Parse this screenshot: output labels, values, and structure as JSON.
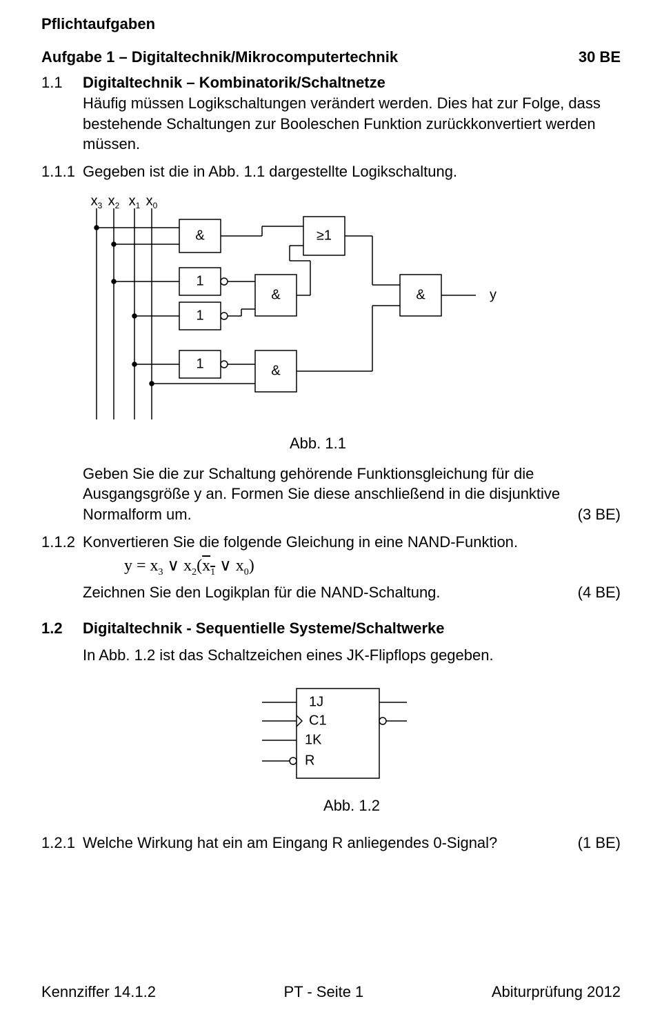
{
  "header": {
    "mandatory": "Pflichtaufgaben",
    "task_title": "Aufgabe 1 – Digitaltechnik/Mikrocomputertechnik",
    "total_points": "30 BE"
  },
  "s11": {
    "num": "1.1",
    "title": "Digitaltechnik – Kombinatorik/Schaltnetze",
    "intro": "Häufig müssen Logikschaltungen verändert werden. Dies hat zur Folge, dass bestehende Schaltungen zur Booleschen Funktion zurückkonvertiert werden müssen."
  },
  "s111": {
    "num": "1.1.1",
    "pre": "Gegeben ist die in Abb. 1.1 dargestellte Logikschaltung.",
    "caption": "Abb. 1.1",
    "task_a": "Geben Sie die zur Schaltung gehörende Funktionsgleichung für die Aus­gangsgröße y an. Formen Sie diese anschließend in die disjunktive Normal­form um.",
    "points_a": "(3 BE)"
  },
  "circuit1": {
    "inputs": [
      "x",
      "x",
      "x",
      "x"
    ],
    "input_sub": [
      "3",
      "2",
      "1",
      "0"
    ],
    "gates": {
      "and1": "&",
      "or1": "≥1",
      "not1": "1",
      "not2": "1",
      "and2": "&",
      "not3": "1",
      "and3": "&",
      "and4": "&"
    },
    "output": "y",
    "stroke": "#000000",
    "stroke_width": 1.5,
    "font_size": 20
  },
  "s112": {
    "num": "1.1.2",
    "line1": "Konvertieren Sie die folgende Gleichung in eine NAND-Funktion.",
    "formula_parts": {
      "y": "y",
      "eq": " = ",
      "x3": "x",
      "s3": "3",
      "or1": " ∨ ",
      "x2": "x",
      "s2": "2",
      "lp": "(",
      "x1bar": "x",
      "s1": "1",
      "or2": " ∨ ",
      "x0": "x",
      "s0": "0",
      "rp": ")"
    },
    "line2": "Zeichnen Sie den Logikplan für die NAND-Schaltung.",
    "points": "(4 BE)"
  },
  "s12": {
    "num": "1.2",
    "title": "Digitaltechnik - Sequentielle Systeme/Schaltwerke",
    "intro": "In Abb. 1.2  ist das Schaltzeichen eines JK-Flipflops gegeben."
  },
  "circuit2": {
    "labels": {
      "j": "1J",
      "c": "C1",
      "k": "1K",
      "r": "R"
    },
    "caption": "Abb. 1.2",
    "stroke": "#000000",
    "stroke_width": 1.5,
    "font_size": 20
  },
  "s121": {
    "num": "1.2.1",
    "text": "Welche Wirkung hat ein am Eingang R anliegendes 0-Signal?",
    "points": "(1 BE)"
  },
  "footer": {
    "left": "Kennziffer 14.1.2",
    "center": "PT - Seite 1",
    "right": "Abiturprüfung 2012"
  }
}
